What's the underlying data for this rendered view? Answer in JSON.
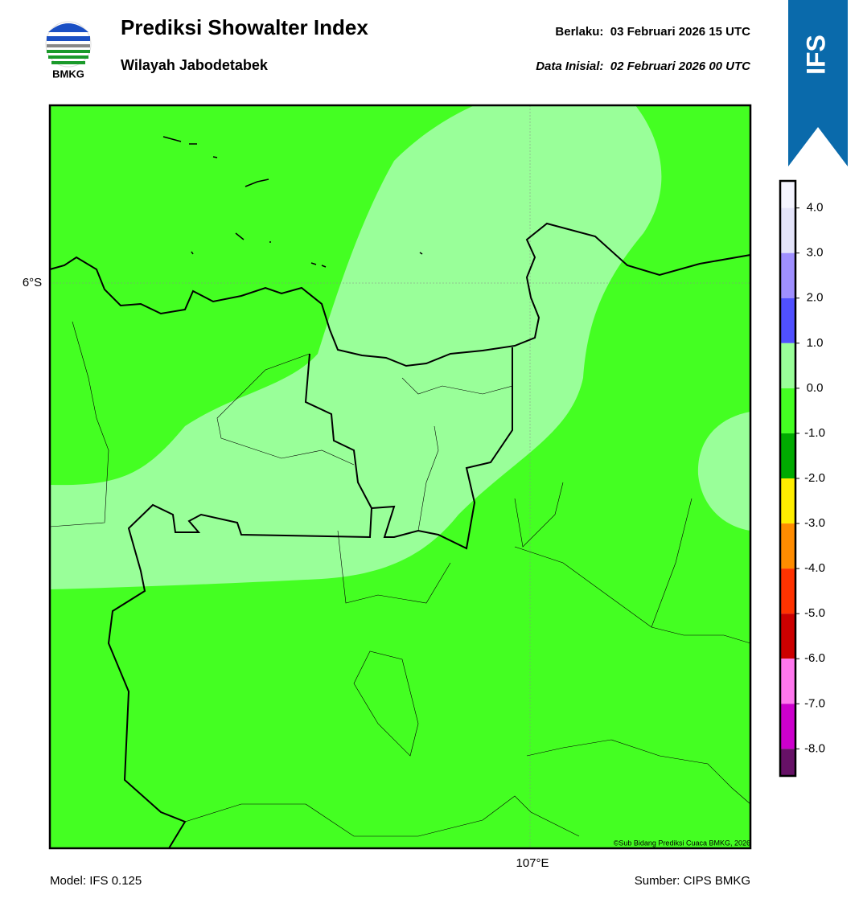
{
  "header": {
    "logo_text": "BMKG",
    "title": "Prediksi Showalter Index",
    "subtitle": "Wilayah Jabodetabek",
    "valid": "Berlaku:  03 Februari 2026 15 UTC",
    "init": "Data Inisial:  02 Februari 2026 00 UTC",
    "badge": "IFS"
  },
  "map": {
    "lat_label": "6°S",
    "lon_label": "107°E",
    "copyright": "©Sub Bidang Prediksi Cuaca BMKG, 2026"
  },
  "colorbar": {
    "bounds": [
      4.6,
      4,
      3,
      2,
      1,
      0,
      -1,
      -2,
      -3,
      -4,
      -5,
      -6,
      -7,
      -8,
      -8.6
    ],
    "colors": [
      "#f4f4ff",
      "#e4e4fa",
      "#9f8fff",
      "#5050ff",
      "#99ff99",
      "#44ff22",
      "#00aa00",
      "#ffee00",
      "#ff8c00",
      "#ff3300",
      "#cc0000",
      "#ff77ee",
      "#cc00cc",
      "#661166"
    ],
    "ticks": [
      {
        "value": 4,
        "label": "4.0"
      },
      {
        "value": 3,
        "label": "3.0"
      },
      {
        "value": 2,
        "label": "2.0"
      },
      {
        "value": 1,
        "label": "1.0"
      },
      {
        "value": 0,
        "label": "0.0"
      },
      {
        "value": -1,
        "label": "-1.0"
      },
      {
        "value": -2,
        "label": "-2.0"
      },
      {
        "value": -3,
        "label": "-3.0"
      },
      {
        "value": -4,
        "label": "-4.0"
      },
      {
        "value": -5,
        "label": "-5.0"
      },
      {
        "value": -6,
        "label": "-6.0"
      },
      {
        "value": -7,
        "label": "-7.0"
      },
      {
        "value": -8,
        "label": "-8.0"
      }
    ]
  },
  "footer": {
    "model": "Model: IFS 0.125",
    "source": "Sumber: CIPS BMKG"
  }
}
